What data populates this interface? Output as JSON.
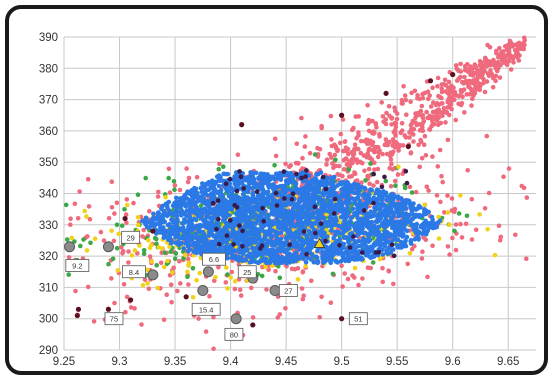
{
  "chart_data": {
    "type": "scatter",
    "title": "",
    "xlabel": "",
    "ylabel": "",
    "xlim": [
      9.25,
      9.675
    ],
    "ylim": [
      290,
      390
    ],
    "x_ticks": [
      "9.25",
      "9.3",
      "9.35",
      "9.4",
      "9.45",
      "9.5",
      "9.55",
      "9.6",
      "9.65"
    ],
    "y_ticks": [
      "290",
      "300",
      "310",
      "320",
      "330",
      "340",
      "350",
      "360",
      "370",
      "380",
      "390"
    ],
    "grid": true,
    "legend": "none",
    "colors": {
      "pink": "#f06a7e",
      "green": "#39a845",
      "yellow": "#f0d21a",
      "blue": "#2a79e6",
      "dark": "#5a1020",
      "gray": "#8a8a8a"
    },
    "clusters": [
      {
        "color": "pink",
        "shape": "arm",
        "x": [
          9.44,
          9.665
        ],
        "y": [
          332,
          388
        ]
      },
      {
        "color": "pink",
        "shape": "halo",
        "center": [
          9.43,
          327
        ],
        "spread": [
          0.16,
          22
        ]
      },
      {
        "color": "green",
        "shape": "band",
        "center": [
          9.42,
          330
        ],
        "spread": [
          0.13,
          17
        ]
      },
      {
        "color": "yellow",
        "shape": "band",
        "center": [
          9.44,
          328
        ],
        "spread": [
          0.14,
          15
        ]
      },
      {
        "color": "blue",
        "shape": "core",
        "center": [
          9.455,
          331
        ],
        "spread": [
          0.105,
          15
        ]
      }
    ],
    "points": [
      {
        "x": 9.262,
        "y": 301,
        "color": "dark"
      },
      {
        "x": 9.263,
        "y": 303,
        "color": "dark"
      },
      {
        "x": 9.29,
        "y": 303,
        "color": "dark"
      },
      {
        "x": 9.305,
        "y": 332,
        "color": "dark"
      },
      {
        "x": 9.31,
        "y": 306,
        "color": "dark"
      },
      {
        "x": 9.33,
        "y": 328,
        "color": "dark"
      },
      {
        "x": 9.36,
        "y": 307,
        "color": "dark"
      },
      {
        "x": 9.42,
        "y": 298,
        "color": "dark"
      },
      {
        "x": 9.5,
        "y": 300,
        "color": "dark"
      },
      {
        "x": 9.41,
        "y": 362,
        "color": "dark"
      },
      {
        "x": 9.5,
        "y": 365,
        "color": "dark"
      },
      {
        "x": 9.54,
        "y": 372,
        "color": "dark"
      },
      {
        "x": 9.58,
        "y": 376,
        "color": "dark"
      },
      {
        "x": 9.6,
        "y": 378,
        "color": "dark"
      },
      {
        "x": 9.56,
        "y": 355,
        "color": "dark"
      },
      {
        "x": 9.255,
        "y": 323,
        "color": "gray"
      },
      {
        "x": 9.29,
        "y": 323,
        "color": "gray"
      },
      {
        "x": 9.33,
        "y": 314,
        "color": "gray"
      },
      {
        "x": 9.38,
        "y": 315,
        "color": "gray"
      },
      {
        "x": 9.375,
        "y": 309,
        "color": "gray"
      },
      {
        "x": 9.405,
        "y": 300,
        "color": "gray"
      },
      {
        "x": 9.42,
        "y": 313,
        "color": "gray"
      },
      {
        "x": 9.44,
        "y": 309,
        "color": "gray"
      },
      {
        "x": 9.48,
        "y": 324,
        "color": "yellow"
      }
    ],
    "annotations": [
      {
        "text": "9.2",
        "x": 9.262,
        "y": 317
      },
      {
        "text": "75",
        "x": 9.295,
        "y": 300
      },
      {
        "text": "29",
        "x": 9.31,
        "y": 326
      },
      {
        "text": "8.4",
        "x": 9.313,
        "y": 315
      },
      {
        "text": "6.6",
        "x": 9.385,
        "y": 319
      },
      {
        "text": "25",
        "x": 9.415,
        "y": 315
      },
      {
        "text": "15.4",
        "x": 9.378,
        "y": 303
      },
      {
        "text": "80",
        "x": 9.403,
        "y": 295
      },
      {
        "text": "27",
        "x": 9.452,
        "y": 309
      },
      {
        "text": "51",
        "x": 9.515,
        "y": 300
      }
    ]
  }
}
